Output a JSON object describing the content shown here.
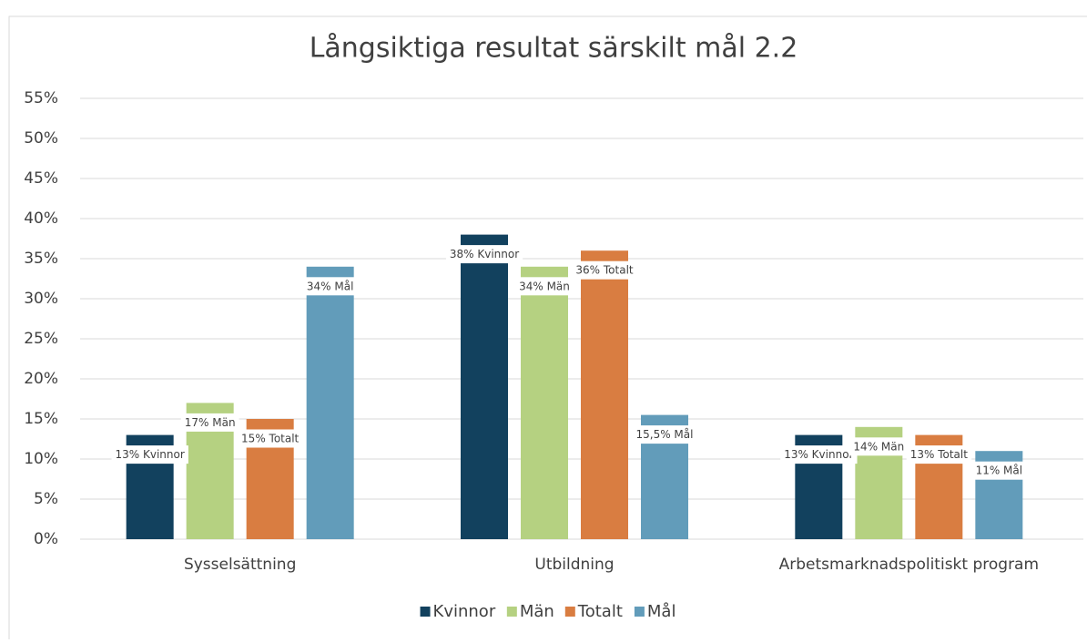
{
  "chart_data": {
    "type": "bar",
    "title": "Långsiktiga resultat särskilt mål 2.2",
    "categories": [
      "Sysselsättning",
      "Utbildning",
      "Arbetsmarknadspolitiskt program"
    ],
    "series": [
      {
        "name": "Kvinnor",
        "color": "#12415e",
        "values": [
          13,
          38,
          13
        ],
        "value_labels": [
          "13% Kvinnor",
          "38% Kvinnor",
          "13% Kvinnor"
        ]
      },
      {
        "name": "Män",
        "color": "#b5d181",
        "values": [
          17,
          34,
          14
        ],
        "value_labels": [
          "17% Män",
          "34% Män",
          "14% Män"
        ]
      },
      {
        "name": "Totalt",
        "color": "#d97d41",
        "values": [
          15,
          36,
          13
        ],
        "value_labels": [
          "15% Totalt",
          "36% Totalt",
          "13% Totalt"
        ]
      },
      {
        "name": "Mål",
        "color": "#629cba",
        "values": [
          34,
          15.5,
          11
        ],
        "value_labels": [
          "34% Mål",
          "15,5% Mål",
          "11% Mål"
        ]
      }
    ],
    "ylim": [
      0,
      55
    ],
    "yticks": [
      {
        "value": 0,
        "label": "0%"
      },
      {
        "value": 5,
        "label": "5%"
      },
      {
        "value": 10,
        "label": "10%"
      },
      {
        "value": 15,
        "label": "15%"
      },
      {
        "value": 20,
        "label": "20%"
      },
      {
        "value": 25,
        "label": "25%"
      },
      {
        "value": 30,
        "label": "30%"
      },
      {
        "value": 35,
        "label": "35%"
      },
      {
        "value": 40,
        "label": "40%"
      },
      {
        "value": 45,
        "label": "45%"
      },
      {
        "value": 50,
        "label": "50%"
      },
      {
        "value": 55,
        "label": "55%"
      }
    ],
    "grid": true,
    "legend": "bottom"
  }
}
